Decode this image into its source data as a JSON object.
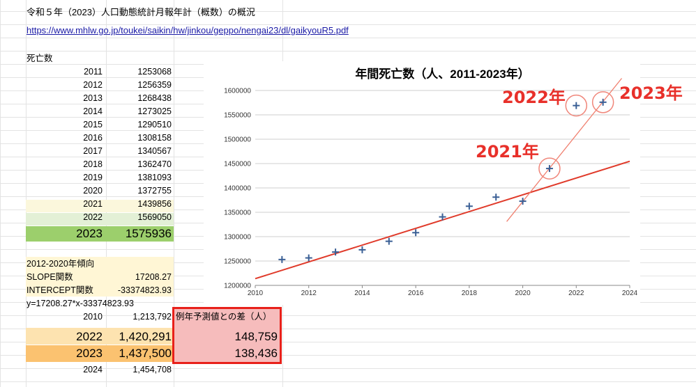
{
  "header": {
    "title": "令和５年（2023）人口動態統計月報年計（概数）の概況",
    "link": "https://www.mhlw.go.jp/toukei/saikin/hw/jinkou/geppo/nengai23/dl/gaikyouR5.pdf"
  },
  "table": {
    "heading": "死亡数",
    "rows": [
      {
        "year": "2011",
        "value": "1253068"
      },
      {
        "year": "2012",
        "value": "1256359"
      },
      {
        "year": "2013",
        "value": "1268438"
      },
      {
        "year": "2014",
        "value": "1273025"
      },
      {
        "year": "2015",
        "value": "1290510"
      },
      {
        "year": "2016",
        "value": "1308158"
      },
      {
        "year": "2017",
        "value": "1340567"
      },
      {
        "year": "2018",
        "value": "1362470"
      },
      {
        "year": "2019",
        "value": "1381093"
      },
      {
        "year": "2020",
        "value": "1372755"
      },
      {
        "year": "2021",
        "value": "1439856"
      },
      {
        "year": "2022",
        "value": "1569050"
      },
      {
        "year": "2023",
        "value": "1575936"
      }
    ]
  },
  "trend": {
    "heading": "2012-2020年傾向",
    "slope_label": "SLOPE関数",
    "slope_value": "17208.27",
    "intercept_label": "INTERCEPT関数",
    "intercept_value": "-33374823.93",
    "formula": "y=17208.27*x-33374823.93"
  },
  "forecast": {
    "diff_header": "例年予測値との差（人）",
    "rows": [
      {
        "year": "2010",
        "value": "1,213,792",
        "diff": ""
      },
      {
        "year": "2022",
        "value": "1,420,291",
        "diff": "148,759"
      },
      {
        "year": "2023",
        "value": "1,437,500",
        "diff": "138,436"
      },
      {
        "year": "2024",
        "value": "1,454,708",
        "diff": ""
      }
    ]
  },
  "colors": {
    "row2021": "#fbf7dc",
    "row2022": "#e3f0d6",
    "row2023": "#9ccf6c",
    "trend_bg": "#fff6d5",
    "fc2022": "#fde3b0",
    "fc2023": "#fbc270",
    "diff_bg": "#f6bcbc",
    "accent_red": "#e8302a",
    "marker": "#3a5f95"
  },
  "chart_data": {
    "type": "scatter",
    "title": "年間死亡数（人、2011-2023年）",
    "x": [
      2011,
      2012,
      2013,
      2014,
      2015,
      2016,
      2017,
      2018,
      2019,
      2020,
      2021,
      2022,
      2023
    ],
    "y": [
      1253068,
      1256359,
      1268438,
      1273025,
      1290510,
      1308158,
      1340567,
      1362470,
      1381093,
      1372755,
      1439856,
      1569050,
      1575936
    ],
    "xlim": [
      2010,
      2024
    ],
    "ylim": [
      1200000,
      1600000
    ],
    "xticks": [
      2010,
      2012,
      2014,
      2016,
      2018,
      2020,
      2022,
      2024
    ],
    "yticks": [
      1200000,
      1250000,
      1300000,
      1350000,
      1400000,
      1450000,
      1500000,
      1550000,
      1600000
    ],
    "grid": true,
    "trend_line": {
      "slope": 17208.27,
      "intercept": -33374823.93,
      "x": [
        2010,
        2024
      ]
    },
    "steep_line": {
      "x": [
        2019.4,
        2023.7
      ],
      "y": [
        1331000,
        1625000
      ]
    },
    "annotations": [
      {
        "label": "2021年",
        "x": 2021,
        "y": 1439856
      },
      {
        "label": "2022年",
        "x": 2022,
        "y": 1569050
      },
      {
        "label": "2023年",
        "x": 2023,
        "y": 1575936
      }
    ]
  }
}
